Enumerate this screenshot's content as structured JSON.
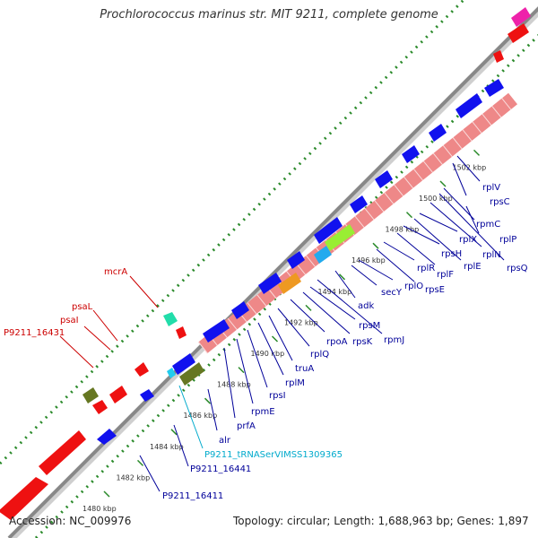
{
  "title": "Prochlorococcus marinus str. MIT 9211, complete genome",
  "footer": {
    "accession": "Accession: NC_009976",
    "summary": "Topology: circular; Length: 1,688,963 bp; Genes: 1,897"
  },
  "colors": {
    "forward_gene": "#ee1111",
    "reverse_gene": "#1111ee",
    "ribosomal_block": "#ee8888",
    "trna": "#22ccee",
    "backbone": "#888888",
    "tick_mark": "#2a8a2a",
    "label_red": "#cc0000",
    "label_blue": "#000099",
    "label_cyan": "#00aacc"
  },
  "ticks": [
    {
      "kbp": 1480,
      "label": "1480 kbp"
    },
    {
      "kbp": 1482,
      "label": "1482 kbp"
    },
    {
      "kbp": 1484,
      "label": "1484 kbp"
    },
    {
      "kbp": 1486,
      "label": "1486 kbp"
    },
    {
      "kbp": 1488,
      "label": "1488 kbp"
    },
    {
      "kbp": 1490,
      "label": "1490 kbp"
    },
    {
      "kbp": 1492,
      "label": "1492 kbp"
    },
    {
      "kbp": 1494,
      "label": "1494 kbp"
    },
    {
      "kbp": 1496,
      "label": "1496 kbp"
    },
    {
      "kbp": 1498,
      "label": "1498 kbp"
    },
    {
      "kbp": 1500,
      "label": "1500 kbp"
    },
    {
      "kbp": 1502,
      "label": "1502 kbp"
    }
  ],
  "forward_labels": [
    "mcrA",
    "psaL",
    "psaI",
    "P9211_16431"
  ],
  "reverse_labels": [
    "rplV",
    "rpsC",
    "rplP",
    "rpmC",
    "rpsQ",
    "rplN",
    "rplX",
    "rplE",
    "rpsH",
    "rplF",
    "rplR",
    "rpsE",
    "rplO",
    "secY",
    "adk",
    "rpmJ",
    "rpsM",
    "rpsK",
    "rpoA",
    "rplQ",
    "truA",
    "rplM",
    "rpsI",
    "rpmE",
    "prfA",
    "alr",
    "P9211_tRNASerVIMSS1309365",
    "P9211_16441",
    "P9211_16411"
  ]
}
